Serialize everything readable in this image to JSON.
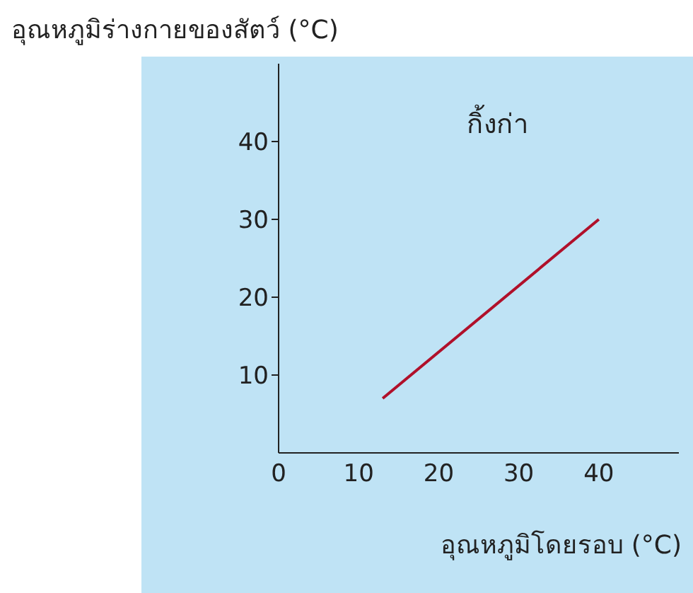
{
  "chart_data": {
    "type": "line",
    "xlabel": "อุณหภูมิโดยรอบ (°C)",
    "ylabel": "อุณหภูมิร่างกายของสัตว์ (°C)",
    "x": [
      13,
      40
    ],
    "series": [
      {
        "name": "กิ้งก่า",
        "color": "#b0102a",
        "values": [
          7,
          30
        ]
      }
    ],
    "xlim": [
      0,
      50
    ],
    "xticks": [
      0,
      10,
      20,
      30,
      40
    ],
    "ylim": [
      0,
      50
    ],
    "yticks": [
      10,
      20,
      30,
      40
    ],
    "grid": false,
    "legend": false,
    "marker": "none",
    "line_style": "solid"
  }
}
